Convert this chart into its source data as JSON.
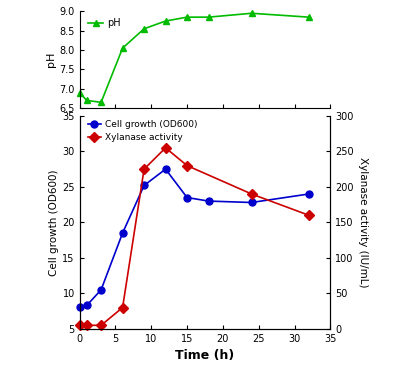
{
  "ph_time": [
    0,
    1,
    3,
    6,
    9,
    12,
    15,
    18,
    24,
    32
  ],
  "ph_values": [
    6.9,
    6.7,
    6.65,
    8.05,
    8.55,
    8.75,
    8.85,
    8.85,
    8.95,
    8.85
  ],
  "cell_time": [
    0,
    1,
    3,
    6,
    9,
    12,
    15,
    18,
    24,
    32
  ],
  "cell_values": [
    8.1,
    8.3,
    10.5,
    18.5,
    25.2,
    27.5,
    23.5,
    23.0,
    22.8,
    24.0
  ],
  "xyl_time": [
    0,
    1,
    3,
    6,
    9,
    12,
    15,
    24,
    32
  ],
  "xyl_values": [
    5,
    5,
    5,
    30,
    225,
    255,
    230,
    190,
    160
  ],
  "ph_color": "#00bb00",
  "cell_color": "#0000cc",
  "xyl_color": "#cc0000",
  "ph_ylim": [
    6.5,
    9.0
  ],
  "cell_ylim": [
    5,
    35
  ],
  "xyl_ylim": [
    0,
    300
  ],
  "xlim": [
    0,
    35
  ],
  "xlabel": "Time (h)",
  "ylabel_cell": "Cell growth (OD600)",
  "ylabel_xyl": "Xylanase activity (IU/mL)",
  "ylabel_ph": "pH",
  "legend_ph": "pH",
  "legend_cell": "Cell growth (OD600)",
  "legend_xyl": "Xylanase activity"
}
